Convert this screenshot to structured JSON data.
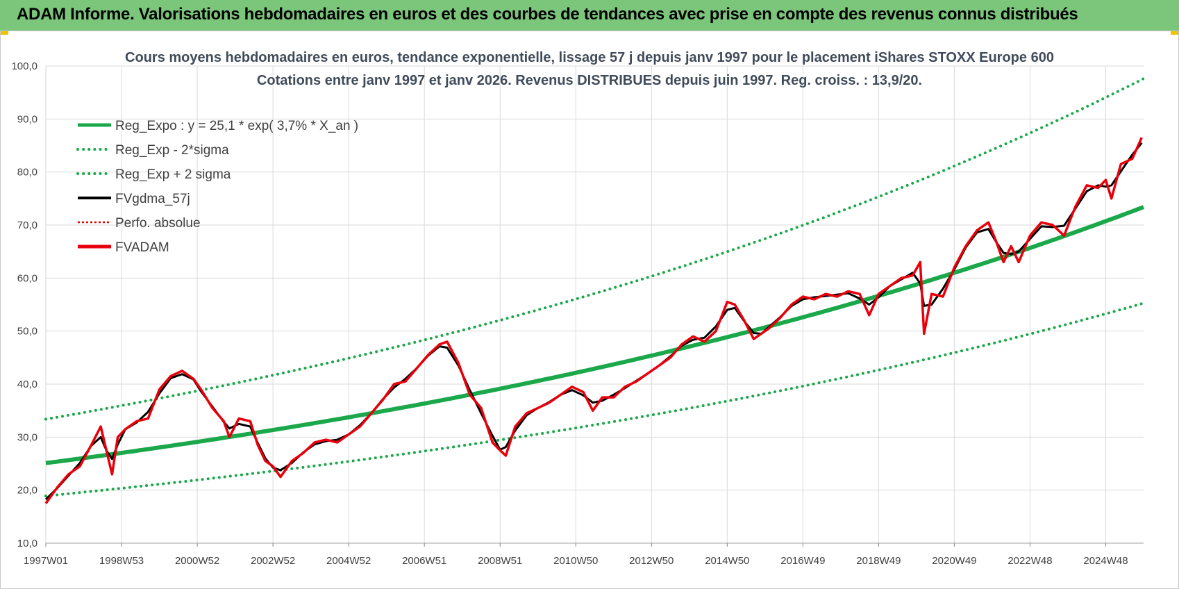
{
  "header": {
    "title": "ADAM Informe. Valorisations hebdomadaires en euros et des courbes de tendances avec prise en compte des revenus connus distribués"
  },
  "chart_data": {
    "type": "line",
    "title_line1": "Cours moyens hebdomadaires en euros, tendance exponentielle, lissage 57 j depuis janv 1997 pour le placement iShares STOXX Europe 600",
    "title_line2": "Cotations entre janv 1997 et janv 2026. Revenus DISTRIBUES depuis juin 1997. Reg. croiss. : 13,9/20.",
    "ylim": [
      10,
      100
    ],
    "xlim": [
      1997.0,
      2026.0
    ],
    "y_ticks": [
      "10,0",
      "20,0",
      "30,0",
      "40,0",
      "50,0",
      "60,0",
      "70,0",
      "80,0",
      "90,0",
      "100,0"
    ],
    "x_ticks": [
      {
        "label": "1997W01",
        "x": 1997.0
      },
      {
        "label": "1998W53",
        "x": 1999.0
      },
      {
        "label": "2000W52",
        "x": 2001.0
      },
      {
        "label": "2002W52",
        "x": 2003.0
      },
      {
        "label": "2004W52",
        "x": 2005.0
      },
      {
        "label": "2006W51",
        "x": 2007.0
      },
      {
        "label": "2008W51",
        "x": 2009.0
      },
      {
        "label": "2010W50",
        "x": 2011.0
      },
      {
        "label": "2012W50",
        "x": 2013.0
      },
      {
        "label": "2014W50",
        "x": 2015.0
      },
      {
        "label": "2016W49",
        "x": 2017.0
      },
      {
        "label": "2018W49",
        "x": 2019.0
      },
      {
        "label": "2020W49",
        "x": 2021.0
      },
      {
        "label": "2022W48",
        "x": 2023.0
      },
      {
        "label": "2024W48",
        "x": 2025.0
      }
    ],
    "grid": true,
    "legend_position": "top-left",
    "regression": {
      "a": 25.1,
      "rate": 0.037,
      "x0": 1997.0,
      "upper_factor": 1.33,
      "lower_factor": 0.753
    },
    "series": [
      {
        "name": "Reg_Expo : y = 25,1 * exp( 3,7% *  X_an )",
        "color": "#1aa84a",
        "style": "solid-thick"
      },
      {
        "name": "Reg_Exp - 2*sigma",
        "color": "#1aa84a",
        "style": "dotted"
      },
      {
        "name": "Reg_Exp + 2 sigma",
        "color": "#1aa84a",
        "style": "dotted"
      },
      {
        "name": "FVgdma_57j",
        "color": "#000000",
        "style": "solid"
      },
      {
        "name": "Perfo. absolue",
        "color": "#e00000",
        "style": "dotted-thin"
      },
      {
        "name": "FVADAM",
        "color": "#e8000b",
        "style": "solid-thick",
        "x": [
          1997.0,
          1997.3,
          1997.6,
          1997.9,
          1998.2,
          1998.45,
          1998.6,
          1998.75,
          1998.9,
          1999.1,
          1999.4,
          1999.7,
          2000.0,
          2000.3,
          2000.6,
          2000.9,
          2001.1,
          2001.4,
          2001.7,
          2001.85,
          2002.1,
          2002.4,
          2002.6,
          2002.8,
          2003.0,
          2003.2,
          2003.5,
          2003.8,
          2004.1,
          2004.4,
          2004.7,
          2005.0,
          2005.3,
          2005.6,
          2005.9,
          2006.2,
          2006.5,
          2006.8,
          2007.1,
          2007.4,
          2007.6,
          2007.9,
          2008.2,
          2008.5,
          2008.8,
          2009.0,
          2009.15,
          2009.4,
          2009.7,
          2010.0,
          2010.3,
          2010.6,
          2010.9,
          2011.2,
          2011.45,
          2011.7,
          2012.0,
          2012.3,
          2012.6,
          2012.9,
          2013.2,
          2013.5,
          2013.8,
          2014.1,
          2014.4,
          2014.7,
          2015.0,
          2015.2,
          2015.45,
          2015.7,
          2015.9,
          2016.1,
          2016.4,
          2016.7,
          2017.0,
          2017.3,
          2017.6,
          2017.9,
          2018.2,
          2018.5,
          2018.75,
          2019.0,
          2019.3,
          2019.6,
          2019.9,
          2020.1,
          2020.2,
          2020.4,
          2020.7,
          2021.0,
          2021.3,
          2021.6,
          2021.9,
          2022.1,
          2022.3,
          2022.5,
          2022.7,
          2023.0,
          2023.3,
          2023.6,
          2023.9,
          2024.2,
          2024.5,
          2024.8,
          2025.0,
          2025.15,
          2025.4,
          2025.7,
          2025.95
        ],
        "y": [
          17.5,
          20.5,
          23.0,
          24.5,
          28.5,
          32.0,
          27.5,
          23.0,
          30.0,
          31.5,
          33.0,
          33.5,
          39.0,
          41.5,
          42.5,
          41.0,
          39.0,
          35.5,
          33.0,
          30.0,
          33.5,
          33.0,
          28.5,
          25.5,
          24.5,
          22.5,
          25.5,
          27.0,
          29.0,
          29.5,
          29.0,
          30.5,
          32.0,
          34.5,
          37.0,
          40.0,
          40.5,
          43.0,
          45.5,
          47.5,
          48.0,
          44.0,
          38.0,
          35.5,
          29.0,
          27.5,
          26.5,
          32.0,
          34.5,
          35.5,
          36.5,
          38.0,
          39.5,
          38.5,
          35.0,
          37.5,
          37.5,
          39.5,
          40.5,
          42.0,
          43.5,
          45.0,
          47.5,
          49.0,
          48.0,
          50.0,
          55.5,
          55.0,
          52.0,
          48.5,
          49.5,
          50.5,
          52.5,
          55.0,
          56.5,
          56.0,
          57.0,
          56.5,
          57.5,
          57.0,
          53.0,
          57.0,
          58.5,
          60.0,
          60.5,
          63.0,
          49.5,
          57.0,
          56.5,
          62.0,
          66.0,
          69.0,
          70.5,
          67.0,
          63.0,
          66.0,
          63.0,
          68.0,
          70.5,
          70.0,
          68.0,
          73.5,
          77.5,
          77.0,
          78.5,
          75.0,
          81.5,
          82.5,
          86.5
        ]
      }
    ]
  }
}
